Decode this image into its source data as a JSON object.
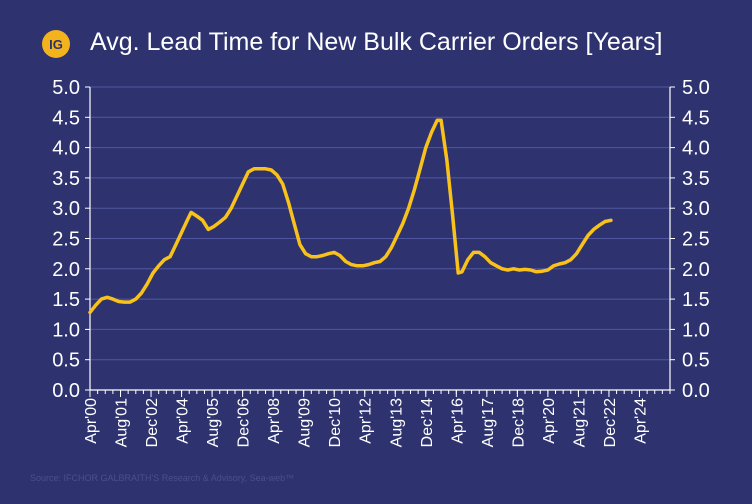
{
  "header": {
    "logo_text": "IG",
    "title": "Avg. Lead Time for New Bulk Carrier Orders [Years]"
  },
  "source": "Source: IFCHOR GALBRAITH'S Research & Advisory, Sea-web™",
  "colors": {
    "background": "#2e3370",
    "line": "#f8c21b",
    "grid": "#5057a0",
    "axis": "#ffffff",
    "text": "#ffffff"
  },
  "chart_data": {
    "type": "line",
    "title": "Avg. Lead Time for New Bulk Carrier Orders [Years]",
    "xlabel": "",
    "ylabel": "",
    "ylim": [
      0,
      5
    ],
    "yticks": [
      "0.0",
      "0.5",
      "1.0",
      "1.5",
      "2.0",
      "2.5",
      "3.0",
      "3.5",
      "4.0",
      "4.5",
      "5.0"
    ],
    "xlim": [
      "2000-04",
      "2025-08"
    ],
    "xtick_labels": [
      "Apr'00",
      "Aug'01",
      "Dec'02",
      "Apr'04",
      "Aug'05",
      "Dec'06",
      "Apr'08",
      "Aug'09",
      "Dec'10",
      "Apr'12",
      "Aug'13",
      "Dec'14",
      "Apr'16",
      "Aug'17",
      "Dec'18",
      "Apr'20",
      "Aug'21",
      "Dec'22",
      "Apr'24"
    ],
    "xtick_dates": [
      "2000-04",
      "2001-08",
      "2002-12",
      "2004-04",
      "2005-08",
      "2006-12",
      "2008-04",
      "2009-08",
      "2010-12",
      "2012-04",
      "2013-08",
      "2014-12",
      "2016-04",
      "2017-08",
      "2018-12",
      "2020-04",
      "2021-08",
      "2022-12",
      "2024-04"
    ],
    "grid": true,
    "secondary_y_axis": true,
    "series": [
      {
        "points": [
          [
            "2000-04",
            1.28
          ],
          [
            "2000-07",
            1.4
          ],
          [
            "2000-10",
            1.5
          ],
          [
            "2001-01",
            1.53
          ],
          [
            "2001-04",
            1.5
          ],
          [
            "2001-07",
            1.46
          ],
          [
            "2001-10",
            1.45
          ],
          [
            "2002-01",
            1.45
          ],
          [
            "2002-04",
            1.5
          ],
          [
            "2002-07",
            1.6
          ],
          [
            "2002-10",
            1.75
          ],
          [
            "2003-01",
            1.93
          ],
          [
            "2003-04",
            2.05
          ],
          [
            "2003-07",
            2.15
          ],
          [
            "2003-10",
            2.2
          ],
          [
            "2004-01",
            2.4
          ],
          [
            "2004-04",
            2.6
          ],
          [
            "2004-07",
            2.8
          ],
          [
            "2004-09",
            2.93
          ],
          [
            "2004-12",
            2.87
          ],
          [
            "2005-03",
            2.8
          ],
          [
            "2005-06",
            2.65
          ],
          [
            "2005-09",
            2.7
          ],
          [
            "2005-12",
            2.77
          ],
          [
            "2006-03",
            2.85
          ],
          [
            "2006-06",
            3.0
          ],
          [
            "2006-09",
            3.2
          ],
          [
            "2006-12",
            3.4
          ],
          [
            "2007-03",
            3.6
          ],
          [
            "2007-06",
            3.65
          ],
          [
            "2007-09",
            3.65
          ],
          [
            "2007-12",
            3.65
          ],
          [
            "2008-03",
            3.63
          ],
          [
            "2008-06",
            3.55
          ],
          [
            "2008-09",
            3.4
          ],
          [
            "2008-12",
            3.1
          ],
          [
            "2009-03",
            2.75
          ],
          [
            "2009-06",
            2.4
          ],
          [
            "2009-09",
            2.25
          ],
          [
            "2009-12",
            2.2
          ],
          [
            "2010-03",
            2.2
          ],
          [
            "2010-06",
            2.22
          ],
          [
            "2010-09",
            2.25
          ],
          [
            "2010-12",
            2.27
          ],
          [
            "2011-03",
            2.22
          ],
          [
            "2011-06",
            2.12
          ],
          [
            "2011-09",
            2.07
          ],
          [
            "2011-12",
            2.05
          ],
          [
            "2012-03",
            2.05
          ],
          [
            "2012-06",
            2.07
          ],
          [
            "2012-09",
            2.1
          ],
          [
            "2012-12",
            2.12
          ],
          [
            "2013-03",
            2.2
          ],
          [
            "2013-06",
            2.35
          ],
          [
            "2013-09",
            2.55
          ],
          [
            "2013-12",
            2.75
          ],
          [
            "2014-03",
            3.0
          ],
          [
            "2014-06",
            3.3
          ],
          [
            "2014-09",
            3.65
          ],
          [
            "2014-12",
            4.0
          ],
          [
            "2015-03",
            4.25
          ],
          [
            "2015-06",
            4.45
          ],
          [
            "2015-08",
            4.45
          ],
          [
            "2015-11",
            3.8
          ],
          [
            "2016-02",
            2.9
          ],
          [
            "2016-05",
            1.93
          ],
          [
            "2016-07",
            1.95
          ],
          [
            "2016-10",
            2.15
          ],
          [
            "2017-01",
            2.27
          ],
          [
            "2017-04",
            2.27
          ],
          [
            "2017-07",
            2.2
          ],
          [
            "2017-10",
            2.1
          ],
          [
            "2018-01",
            2.05
          ],
          [
            "2018-04",
            2.0
          ],
          [
            "2018-07",
            1.98
          ],
          [
            "2018-10",
            2.0
          ],
          [
            "2019-01",
            1.98
          ],
          [
            "2019-04",
            1.99
          ],
          [
            "2019-07",
            1.98
          ],
          [
            "2019-10",
            1.95
          ],
          [
            "2020-01",
            1.96
          ],
          [
            "2020-04",
            1.98
          ],
          [
            "2020-07",
            2.05
          ],
          [
            "2020-10",
            2.08
          ],
          [
            "2021-01",
            2.1
          ],
          [
            "2021-04",
            2.15
          ],
          [
            "2021-07",
            2.25
          ],
          [
            "2021-10",
            2.4
          ],
          [
            "2022-01",
            2.55
          ],
          [
            "2022-04",
            2.65
          ],
          [
            "2022-07",
            2.72
          ],
          [
            "2022-10",
            2.78
          ],
          [
            "2023-01",
            2.8
          ]
        ]
      }
    ]
  }
}
